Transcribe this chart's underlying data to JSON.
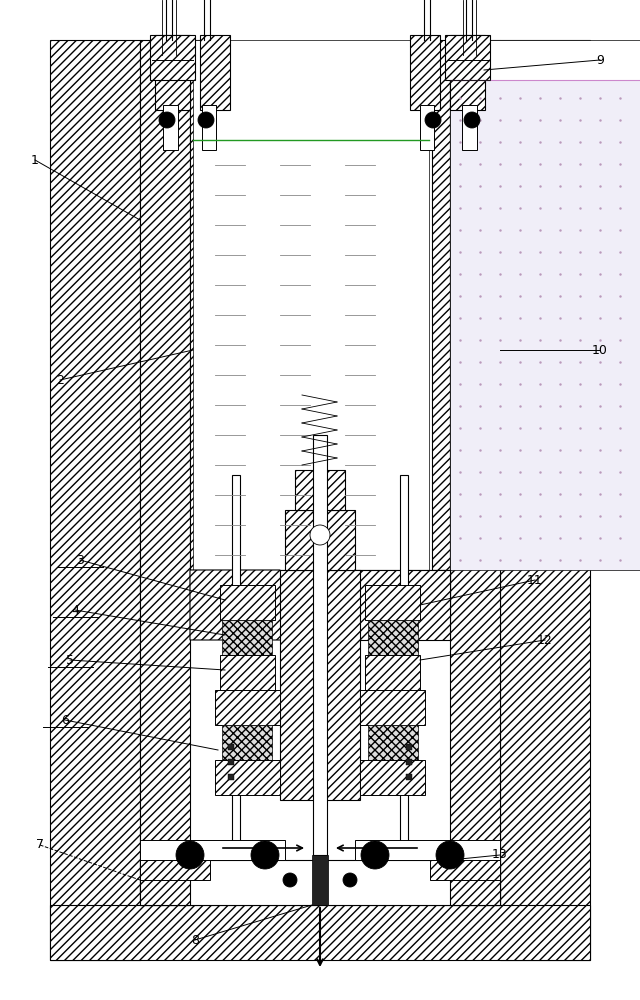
{
  "figsize": [
    6.4,
    10.0
  ],
  "dpi": 100,
  "bg_color": "#ffffff",
  "line_color": "#000000",
  "hatch_angle_color": "#000000"
}
